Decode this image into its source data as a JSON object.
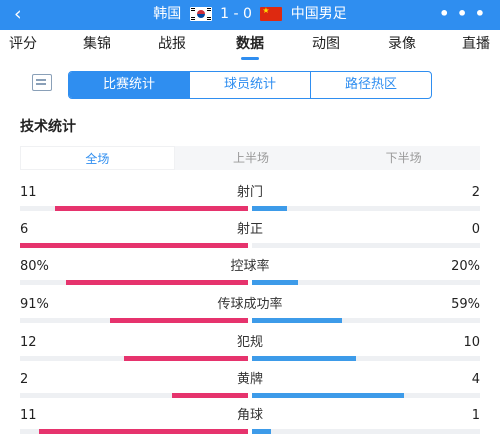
{
  "header": {
    "back_icon": "chevron-left-icon",
    "home_team": "韩国",
    "score": "1 - 0",
    "away_team": "中国男足",
    "more_icon": "more-dots-icon",
    "color": "#2f8ef0"
  },
  "tabs": [
    {
      "label": "评分",
      "active": false
    },
    {
      "label": "集锦",
      "active": false
    },
    {
      "label": "战报",
      "active": false
    },
    {
      "label": "数据",
      "active": true
    },
    {
      "label": "动图",
      "active": false
    },
    {
      "label": "录像",
      "active": false
    },
    {
      "label": "直播",
      "active": false
    }
  ],
  "segment": {
    "icon": "document-icon",
    "items": [
      "比赛统计",
      "球员统计",
      "路径热区"
    ],
    "active": "比赛统计"
  },
  "section_title": "技术统计",
  "period": {
    "items": [
      "全场",
      "上半场",
      "下半场"
    ],
    "active": "全场"
  },
  "colors": {
    "home_bar": "#e6336d",
    "away_bar": "#3d9be9",
    "track": "#eef0f3"
  },
  "stats": [
    {
      "name": "射门",
      "home": "11",
      "away": "2",
      "home_share": 0.846,
      "away_share": 0.154
    },
    {
      "name": "射正",
      "home": "6",
      "away": "0",
      "home_share": 1.0,
      "away_share": 0.0
    },
    {
      "name": "控球率",
      "home": "80%",
      "away": "20%",
      "home_share": 0.8,
      "away_share": 0.2
    },
    {
      "name": "传球成功率",
      "home": "91%",
      "away": "59%",
      "home_share": 0.607,
      "away_share": 0.393
    },
    {
      "name": "犯规",
      "home": "12",
      "away": "10",
      "home_share": 0.545,
      "away_share": 0.455
    },
    {
      "name": "黄牌",
      "home": "2",
      "away": "4",
      "home_share": 0.333,
      "away_share": 0.667
    },
    {
      "name": "角球",
      "home": "11",
      "away": "1",
      "home_share": 0.917,
      "away_share": 0.083
    }
  ]
}
